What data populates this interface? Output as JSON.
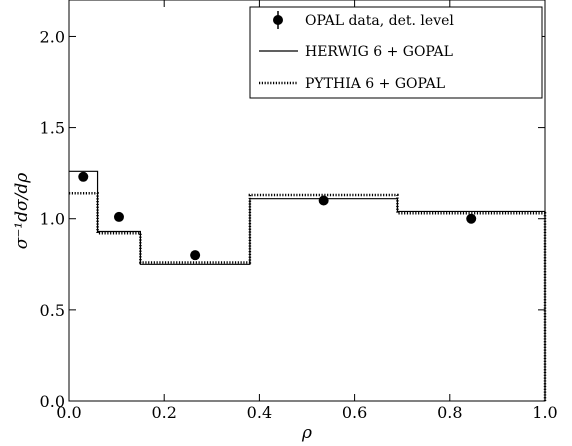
{
  "chart_data": {
    "type": "line",
    "xlabel": "ρ",
    "ylabel": "σ⁻¹dσ/dρ",
    "xlim": [
      0.0,
      1.0
    ],
    "ylim": [
      0.0,
      2.2
    ],
    "x_ticks": [
      {
        "value": 0.0,
        "label": "0.0"
      },
      {
        "value": 0.2,
        "label": "0.2"
      },
      {
        "value": 0.4,
        "label": "0.4"
      },
      {
        "value": 0.6,
        "label": "0.6"
      },
      {
        "value": 0.8,
        "label": "0.8"
      },
      {
        "value": 1.0,
        "label": "1.0"
      }
    ],
    "y_ticks": [
      {
        "value": 0.0,
        "label": "0.0"
      },
      {
        "value": 0.5,
        "label": "0.5"
      },
      {
        "value": 1.0,
        "label": "1.0"
      },
      {
        "value": 1.5,
        "label": "1.5"
      },
      {
        "value": 2.0,
        "label": "2.0"
      }
    ],
    "legend_position": "top-right",
    "grid": false,
    "bin_edges": [
      0.0,
      0.06,
      0.15,
      0.38,
      0.69,
      1.0
    ],
    "series": [
      {
        "name": "OPAL data, det. level",
        "kind": "points",
        "x": [
          0.03,
          0.105,
          0.265,
          0.535,
          0.845
        ],
        "y": [
          1.23,
          1.01,
          0.8,
          1.1,
          1.0
        ],
        "yerr": [
          0.02,
          0.01,
          0.01,
          0.01,
          0.01
        ]
      },
      {
        "name": "HERWIG 6 + GOPAL",
        "kind": "step-solid",
        "values": [
          1.26,
          0.93,
          0.75,
          1.11,
          1.04
        ]
      },
      {
        "name": "PYTHIA 6 + GOPAL",
        "kind": "step-dotted",
        "values": [
          1.14,
          0.92,
          0.76,
          1.13,
          1.03
        ]
      }
    ]
  }
}
